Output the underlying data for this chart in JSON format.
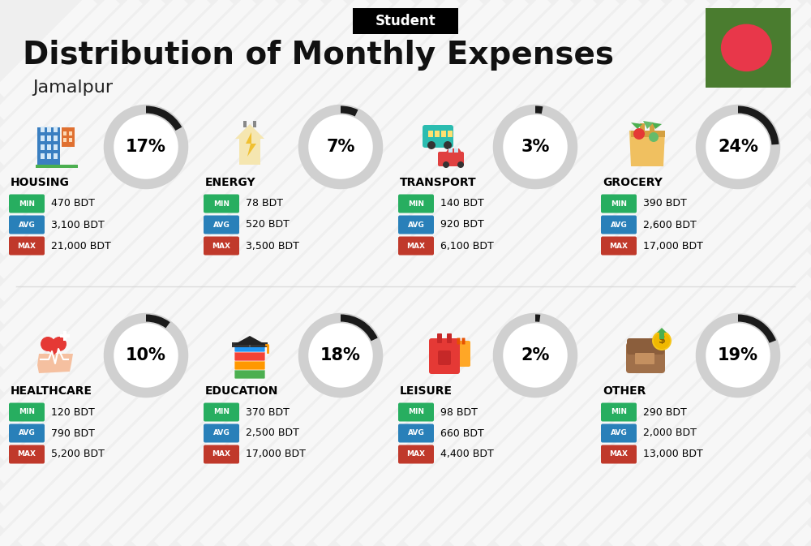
{
  "title": "Distribution of Monthly Expenses",
  "subtitle": "Student",
  "location": "Jamalpur",
  "bg_color": "#efefef",
  "categories": [
    {
      "name": "HOUSING",
      "pct": 17,
      "min_val": "470 BDT",
      "avg_val": "3,100 BDT",
      "max_val": "21,000 BDT",
      "icon": "housing",
      "row": 0,
      "col": 0
    },
    {
      "name": "ENERGY",
      "pct": 7,
      "min_val": "78 BDT",
      "avg_val": "520 BDT",
      "max_val": "3,500 BDT",
      "icon": "energy",
      "row": 0,
      "col": 1
    },
    {
      "name": "TRANSPORT",
      "pct": 3,
      "min_val": "140 BDT",
      "avg_val": "920 BDT",
      "max_val": "6,100 BDT",
      "icon": "transport",
      "row": 0,
      "col": 2
    },
    {
      "name": "GROCERY",
      "pct": 24,
      "min_val": "390 BDT",
      "avg_val": "2,600 BDT",
      "max_val": "17,000 BDT",
      "icon": "grocery",
      "row": 0,
      "col": 3
    },
    {
      "name": "HEALTHCARE",
      "pct": 10,
      "min_val": "120 BDT",
      "avg_val": "790 BDT",
      "max_val": "5,200 BDT",
      "icon": "healthcare",
      "row": 1,
      "col": 0
    },
    {
      "name": "EDUCATION",
      "pct": 18,
      "min_val": "370 BDT",
      "avg_val": "2,500 BDT",
      "max_val": "17,000 BDT",
      "icon": "education",
      "row": 1,
      "col": 1
    },
    {
      "name": "LEISURE",
      "pct": 2,
      "min_val": "98 BDT",
      "avg_val": "660 BDT",
      "max_val": "4,400 BDT",
      "icon": "leisure",
      "row": 1,
      "col": 2
    },
    {
      "name": "OTHER",
      "pct": 19,
      "min_val": "290 BDT",
      "avg_val": "2,000 BDT",
      "max_val": "13,000 BDT",
      "icon": "other",
      "row": 1,
      "col": 3
    }
  ],
  "color_min": "#27ae60",
  "color_avg": "#2980b9",
  "color_max": "#c0392b",
  "label_min": "MIN",
  "label_avg": "AVG",
  "label_max": "MAX",
  "circle_bg": "#ffffff",
  "circle_ring": "#d0d0d0",
  "circle_arc": "#1a1a1a",
  "flag_green": "#4a7c2f",
  "flag_red": "#e8374a",
  "stripe_color": "#e8e8e8",
  "header_bg": "#000000",
  "header_text": "#ffffff",
  "title_color": "#111111",
  "location_color": "#222222"
}
